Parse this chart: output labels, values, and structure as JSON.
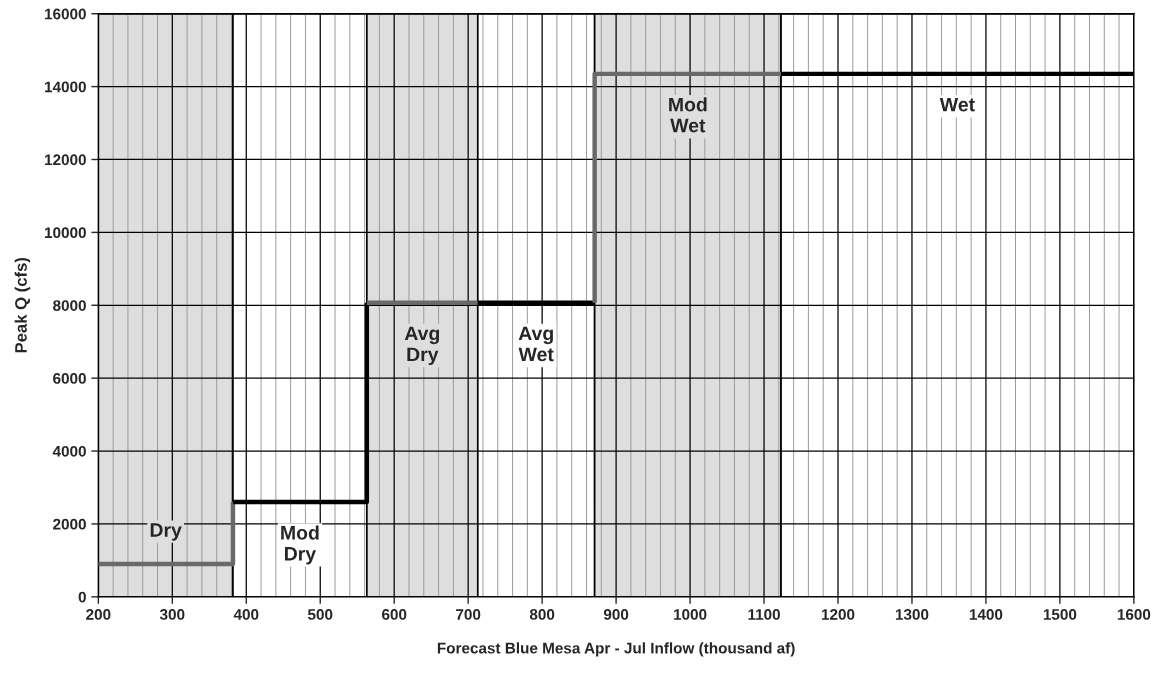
{
  "chart_data": {
    "type": "line",
    "xlabel": "Forecast Blue Mesa Apr - Jul Inflow (thousand af)",
    "ylabel": "Peak Q (cfs)",
    "xlim": [
      200,
      1600
    ],
    "ylim": [
      0,
      16000
    ],
    "xticks": [
      200,
      {
        "value": 220,
        "label": null
      },
      {
        "value": 240,
        "label": null
      },
      {
        "value": 260,
        "label": null
      },
      {
        "value": 280,
        "label": null
      },
      300,
      {
        "value": 320,
        "label": null
      },
      {
        "value": 340,
        "label": null
      },
      {
        "value": 360,
        "label": null
      },
      {
        "value": 380,
        "label": null
      },
      400,
      {
        "value": 420,
        "label": null
      },
      {
        "value": 440,
        "label": null
      },
      {
        "value": 460,
        "label": null
      },
      {
        "value": 480,
        "label": null
      },
      500,
      {
        "value": 520,
        "label": null
      },
      {
        "value": 540,
        "label": null
      },
      {
        "value": 560,
        "label": null
      },
      {
        "value": 580,
        "label": null
      },
      600,
      {
        "value": 620,
        "label": null
      },
      {
        "value": 640,
        "label": null
      },
      {
        "value": 660,
        "label": null
      },
      {
        "value": 680,
        "label": null
      },
      700,
      {
        "value": 720,
        "label": null
      },
      {
        "value": 740,
        "label": null
      },
      {
        "value": 760,
        "label": null
      },
      {
        "value": 780,
        "label": null
      },
      800,
      {
        "value": 820,
        "label": null
      },
      {
        "value": 840,
        "label": null
      },
      {
        "value": 860,
        "label": null
      },
      {
        "value": 880,
        "label": null
      },
      900,
      {
        "value": 920,
        "label": null
      },
      {
        "value": 940,
        "label": null
      },
      {
        "value": 960,
        "label": null
      },
      {
        "value": 980,
        "label": null
      },
      1000,
      {
        "value": 1020,
        "label": null
      },
      {
        "value": 1040,
        "label": null
      },
      {
        "value": 1060,
        "label": null
      },
      {
        "value": 1080,
        "label": null
      },
      1100,
      {
        "value": 1120,
        "label": null
      },
      {
        "value": 1140,
        "label": null
      },
      {
        "value": 1160,
        "label": null
      },
      {
        "value": 1180,
        "label": null
      },
      1200,
      {
        "value": 1220,
        "label": null
      },
      {
        "value": 1240,
        "label": null
      },
      {
        "value": 1260,
        "label": null
      },
      {
        "value": 1280,
        "label": null
      },
      1300,
      {
        "value": 1320,
        "label": null
      },
      {
        "value": 1340,
        "label": null
      },
      {
        "value": 1360,
        "label": null
      },
      {
        "value": 1380,
        "label": null
      },
      1400,
      {
        "value": 1420,
        "label": null
      },
      {
        "value": 1440,
        "label": null
      },
      {
        "value": 1460,
        "label": null
      },
      {
        "value": 1480,
        "label": null
      },
      1500,
      {
        "value": 1520,
        "label": null
      },
      {
        "value": 1540,
        "label": null
      },
      {
        "value": 1560,
        "label": null
      },
      {
        "value": 1580,
        "label": null
      },
      1600
    ],
    "yticks": [
      0,
      2000,
      4000,
      6000,
      8000,
      10000,
      12000,
      14000,
      16000
    ],
    "grid": true,
    "series": [
      {
        "color": "#696969",
        "x": [
          200,
          382,
          382
        ],
        "values": [
          900,
          900,
          2600
        ]
      },
      {
        "color": "#000000",
        "x": [
          382,
          563,
          563
        ],
        "values": [
          2600,
          2600,
          8070
        ]
      },
      {
        "color": "#696969",
        "x": [
          563,
          713
        ],
        "values": [
          8070,
          8070
        ]
      },
      {
        "color": "#000000",
        "x": [
          713,
          871
        ],
        "values": [
          8070,
          8070
        ]
      },
      {
        "color": "#696969",
        "x": [
          871,
          871,
          1123
        ],
        "values": [
          8070,
          14350,
          14350
        ]
      },
      {
        "color": "#000000",
        "x": [
          1123,
          1600
        ],
        "values": [
          14350,
          14350
        ]
      }
    ],
    "bands": [
      {
        "axis": "x",
        "from": 200,
        "to": 382,
        "color": "#dedede",
        "label": "Dry"
      },
      {
        "axis": "x",
        "from": 382,
        "to": 563,
        "color": "#ffffff",
        "label": "Mod\nDry"
      },
      {
        "axis": "x",
        "from": 563,
        "to": 713,
        "color": "#dedede",
        "label": "Avg\nDry"
      },
      {
        "axis": "x",
        "from": 713,
        "to": 871,
        "color": "#ffffff",
        "label": "Avg\nWet"
      },
      {
        "axis": "x",
        "from": 871,
        "to": 1123,
        "color": "#dedede",
        "label": "Mod\nWet"
      },
      {
        "axis": "x",
        "from": 1123,
        "to": 1600,
        "color": "#ffffff",
        "label": "Wet"
      }
    ]
  }
}
